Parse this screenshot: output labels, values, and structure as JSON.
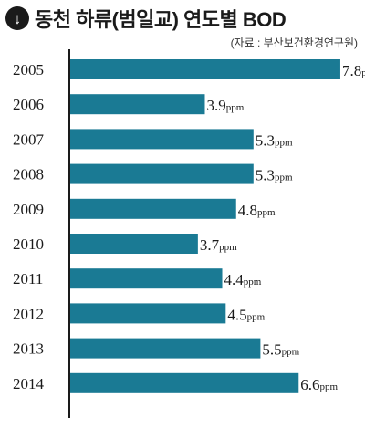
{
  "title": "동천 하류(범일교) 연도별 BOD",
  "arrow_glyph": "↓",
  "source": "(자료 : 부산보건환경연구원)",
  "colors": {
    "bar": "#1a7a94",
    "axis": "#1a1a1a"
  },
  "chart_data": {
    "type": "bar",
    "orientation": "horizontal",
    "title": "동천 하류(범일교) 연도별 BOD",
    "categories": [
      "2005",
      "2006",
      "2007",
      "2008",
      "2009",
      "2010",
      "2011",
      "2012",
      "2013",
      "2014"
    ],
    "values": [
      7.8,
      3.9,
      5.3,
      5.3,
      4.8,
      3.7,
      4.4,
      4.5,
      5.5,
      6.6
    ],
    "value_unit": "ppm",
    "xlim": [
      0,
      8.3
    ],
    "grid": false
  }
}
